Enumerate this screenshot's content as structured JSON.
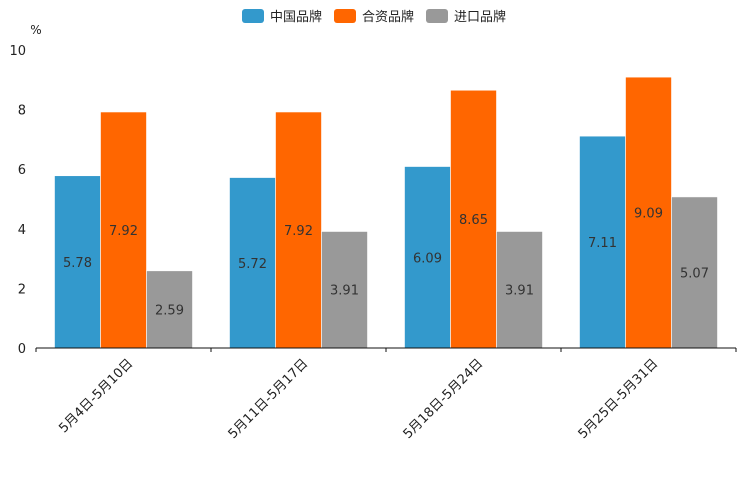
{
  "chart_data": {
    "type": "bar",
    "unit": "%",
    "categories": [
      "5月4日-5月10日",
      "5月11日-5月17日",
      "5月18日-5月24日",
      "5月25日-5月31日"
    ],
    "series": [
      {
        "name": "中国品牌",
        "color": "#3399cc",
        "values": [
          5.78,
          5.72,
          6.09,
          7.11
        ]
      },
      {
        "name": "合资品牌",
        "color": "#ff6600",
        "values": [
          7.92,
          7.92,
          8.65,
          9.09
        ]
      },
      {
        "name": "进口品牌",
        "color": "#999999",
        "values": [
          2.59,
          3.91,
          3.91,
          5.07
        ]
      }
    ],
    "ylim": [
      0,
      10
    ],
    "yticks": [
      0,
      2,
      4,
      6,
      8,
      10
    ],
    "legend_position": "top-center",
    "grid": false,
    "xlabel": "",
    "ylabel": "%"
  }
}
